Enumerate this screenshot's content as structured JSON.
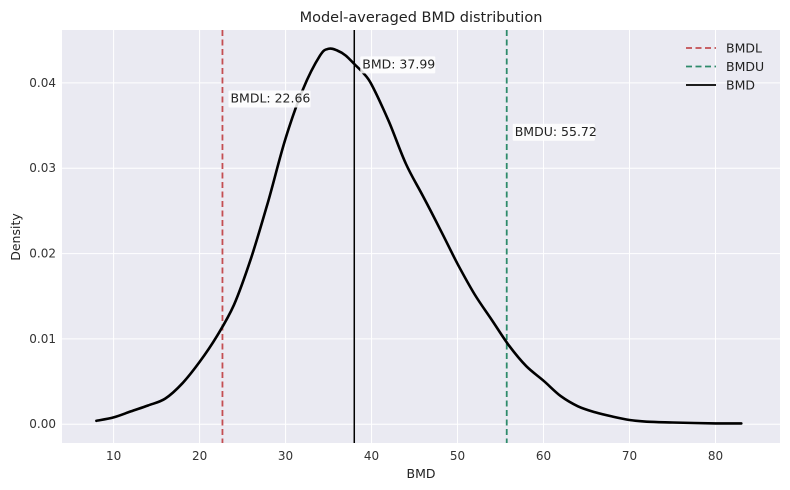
{
  "chart_data": {
    "type": "line",
    "title": "Model-averaged BMD distribution",
    "xlabel": "BMD",
    "ylabel": "Density",
    "xlim": [
      4,
      87.5
    ],
    "ylim": [
      -0.0022,
      0.0462
    ],
    "xticks": [
      10,
      20,
      30,
      40,
      50,
      60,
      70,
      80
    ],
    "yticks": [
      0.0,
      0.01,
      0.02,
      0.03,
      0.04
    ],
    "ytick_labels": [
      "0.00",
      "0.01",
      "0.02",
      "0.03",
      "0.04"
    ],
    "grid": true,
    "legend_position": "top-right",
    "colors": {
      "background": "#eaeaf2",
      "grid": "#ffffff",
      "density": "#000000",
      "bmdl": "#c44e52",
      "bmdu": "#2e8b6b",
      "bmd": "#000000"
    },
    "series": [
      {
        "x": [
          8,
          10,
          12,
          14,
          16,
          18,
          20,
          22,
          24,
          26,
          28,
          30,
          32,
          34,
          35,
          36,
          37,
          38,
          39,
          40,
          42,
          44,
          46,
          48,
          50,
          52,
          54,
          56,
          58,
          60,
          62,
          64,
          66,
          68,
          70,
          72,
          75,
          80,
          83
        ],
        "y": [
          0.0004,
          0.0008,
          0.0015,
          0.0022,
          0.003,
          0.0048,
          0.0073,
          0.0103,
          0.014,
          0.0195,
          0.0262,
          0.0335,
          0.0392,
          0.0432,
          0.044,
          0.0438,
          0.0432,
          0.0422,
          0.0412,
          0.0398,
          0.0355,
          0.0305,
          0.0267,
          0.0228,
          0.0188,
          0.0152,
          0.0122,
          0.0092,
          0.0068,
          0.0051,
          0.0033,
          0.0021,
          0.0014,
          0.0009,
          0.0005,
          0.0003,
          0.0002,
          0.0001,
          0.0001
        ]
      }
    ],
    "vlines": [
      {
        "key": "bmdl",
        "name": "BMDL",
        "x": 22.66,
        "style": "dashed",
        "label": "BMDL: 22.66",
        "label_y": 0.0377
      },
      {
        "key": "bmdu",
        "name": "BMDU",
        "x": 55.72,
        "style": "dashed",
        "label": "BMDU: 55.72",
        "label_y": 0.0338
      },
      {
        "key": "bmd",
        "name": "BMD",
        "x": 37.99,
        "style": "solid",
        "label": "BMD: 37.99",
        "label_y": 0.0417
      }
    ],
    "legend": [
      "BMDL",
      "BMDU",
      "BMD"
    ]
  }
}
